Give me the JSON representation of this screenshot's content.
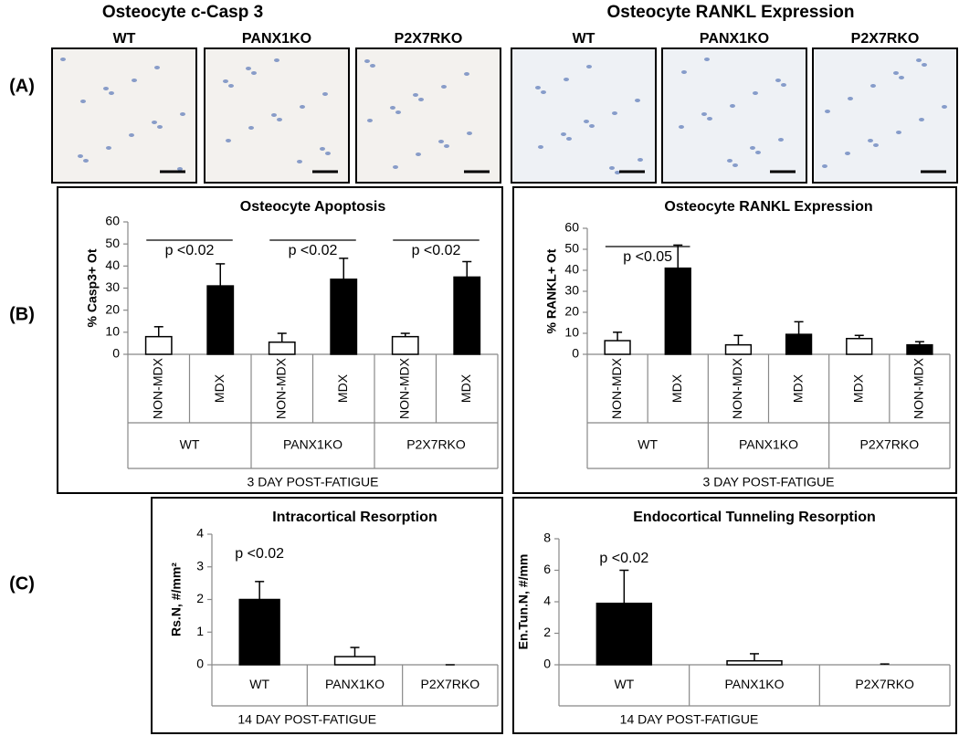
{
  "panel_labels": [
    "(A)",
    "(B)",
    "(C)"
  ],
  "headings": [
    "Osteocyte c-Casp 3",
    "Osteocyte RANKL Expression"
  ],
  "micrographs": [
    "WT",
    "PANX1KO",
    "P2X7RKO",
    "WT",
    "PANX1KO",
    "P2X7RKO"
  ],
  "chart_data": [
    {
      "type": "bar",
      "title": "Osteocyte Apoptosis",
      "ylabel": "% Casp3+ Ot",
      "categories": [
        "NON-MDX",
        "MDX",
        "NON-MDX",
        "MDX",
        "NON-MDX",
        "MDX"
      ],
      "groups": [
        "WT",
        "PANX1KO",
        "P2X7RKO"
      ],
      "xlabel": "3 DAY POST-FATIGUE",
      "values": [
        8,
        31,
        5.5,
        34,
        8,
        35
      ],
      "errors": [
        4.5,
        10,
        4,
        9.5,
        1.5,
        7
      ],
      "colors": [
        "#ffffff",
        "#000000",
        "#ffffff",
        "#000000",
        "#ffffff",
        "#000000"
      ],
      "ylim": [
        0,
        60
      ],
      "yticks": [
        0,
        10,
        20,
        30,
        40,
        50,
        60
      ],
      "annotations": [
        "p <0.02",
        "p <0.02",
        "p <0.02"
      ],
      "brackets": true
    },
    {
      "type": "bar",
      "title": "Osteocyte RANKL Expression",
      "ylabel": "% RANKL+ Ot",
      "categories": [
        "NON-MDX",
        "MDX",
        "NON-MDX",
        "MDX",
        "MDX",
        "NON-MDX"
      ],
      "groups": [
        "WT",
        "PANX1KO",
        "P2X7RKO"
      ],
      "xlabel": "3 DAY POST-FATIGUE",
      "values": [
        6.5,
        41,
        4.5,
        9.5,
        7.5,
        4.5
      ],
      "errors": [
        4,
        11,
        4.5,
        6,
        1.5,
        1.5
      ],
      "colors": [
        "#ffffff",
        "#000000",
        "#ffffff",
        "#000000",
        "#ffffff",
        "#000000"
      ],
      "ylim": [
        0,
        60
      ],
      "yticks": [
        0,
        10,
        20,
        30,
        40,
        50,
        60
      ],
      "annotations": [
        "p <0.05"
      ],
      "brackets": true
    },
    {
      "type": "bar",
      "title": "Intracortical Resorption",
      "ylabel": "Rs.N, #/mm²",
      "categories": [
        "WT",
        "PANX1KO",
        "P2X7RKO"
      ],
      "xlabel": "14 DAY POST-FATIGUE",
      "values": [
        2,
        0.25,
        0
      ],
      "errors": [
        0.55,
        0.28,
        0
      ],
      "colors": [
        "#000000",
        "#ffffff",
        "#ffffff"
      ],
      "ylim": [
        0,
        4
      ],
      "yticks": [
        0,
        1,
        2,
        3,
        4
      ],
      "annotations": [
        "p <0.02"
      ],
      "brackets": false
    },
    {
      "type": "bar",
      "title": "Endocortical Tunneling Resorption",
      "ylabel": "En.Tun.N, #/mm",
      "categories": [
        "WT",
        "PANX1KO",
        "P2X7RKO"
      ],
      "xlabel": "14 DAY POST-FATIGUE",
      "values": [
        3.9,
        0.25,
        0
      ],
      "errors": [
        2.1,
        0.45,
        0.05
      ],
      "colors": [
        "#000000",
        "#ffffff",
        "#ffffff"
      ],
      "ylim": [
        0,
        8
      ],
      "yticks": [
        0,
        2,
        4,
        6,
        8
      ],
      "annotations": [
        "p <0.02"
      ],
      "brackets": false
    }
  ]
}
